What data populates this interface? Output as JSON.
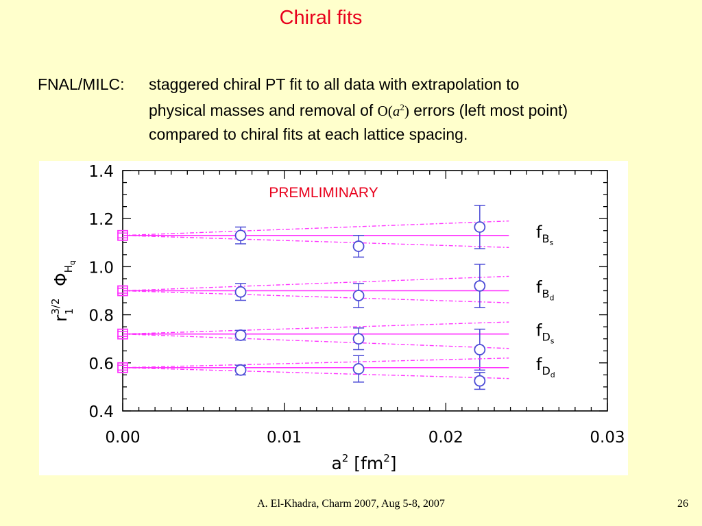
{
  "slide": {
    "title": "Chiral fits",
    "label": "FNAL/MILC:",
    "line1": "staggered chiral PT fit to all data with extrapolation to",
    "line2_pre": "physical masses and removal of ",
    "line2_math_o": "O(",
    "line2_math_a": "a",
    "line2_math_exp": "2",
    "line2_math_close": ")",
    "line2_post": " errors (left most point)",
    "line3": "compared to chiral fits at each lattice spacing.",
    "footer": "A. El-Khadra, Charm 2007, Aug 5-8, 2007",
    "page_number": "26"
  },
  "chart_data": {
    "type": "scatter",
    "annotation": "PREMLIMINARY",
    "xlabel": "a",
    "xlabel_exp": "2",
    "xlabel_unit": "[fm",
    "xlabel_unit_exp": "2",
    "xlabel_unit_close": "]",
    "ylabel": "r",
    "ylabel_exp": "3/2",
    "ylabel_sub": "1",
    "ylabel_phi": "Φ",
    "ylabel_phi_sub": "H",
    "ylabel_phi_subsub": "q",
    "xlim": [
      0,
      0.03
    ],
    "ylim": [
      0.4,
      1.4
    ],
    "x_ticks": [
      0.0,
      0.01,
      0.02,
      0.03
    ],
    "x_tick_labels": [
      "0.00",
      "0.01",
      "0.02",
      "0.03"
    ],
    "y_ticks": [
      0.4,
      0.6,
      0.8,
      1.0,
      1.2,
      1.4
    ],
    "y_tick_labels": [
      "0.4",
      "0.6",
      "0.8",
      "1.0",
      "1.2",
      "1.4"
    ],
    "colors": {
      "data": "#4b4bd6",
      "fit": "#ff33ff",
      "axis": "#000000",
      "annotation": "#e8001c"
    },
    "series": [
      {
        "name": "f",
        "label_sub": "B",
        "label_subsub": "s",
        "extrapolated": {
          "x": 0.0,
          "y": 1.13,
          "err": 0.01
        },
        "points": [
          {
            "x": 0.0073,
            "y": 1.13,
            "err": 0.035
          },
          {
            "x": 0.0146,
            "y": 1.085,
            "err": 0.045
          },
          {
            "x": 0.0221,
            "y": 1.165,
            "err": 0.09
          }
        ],
        "fit": {
          "center": 1.13,
          "upper_end": 1.19,
          "lower_end": 1.08
        }
      },
      {
        "name": "f",
        "label_sub": "B",
        "label_subsub": "d",
        "extrapolated": {
          "x": 0.0,
          "y": 0.9,
          "err": 0.01
        },
        "points": [
          {
            "x": 0.0073,
            "y": 0.895,
            "err": 0.035
          },
          {
            "x": 0.0146,
            "y": 0.88,
            "err": 0.05
          },
          {
            "x": 0.0221,
            "y": 0.92,
            "err": 0.09
          }
        ],
        "fit": {
          "center": 0.9,
          "upper_end": 0.96,
          "lower_end": 0.85
        }
      },
      {
        "name": "f",
        "label_sub": "D",
        "label_subsub": "s",
        "extrapolated": {
          "x": 0.0,
          "y": 0.72,
          "err": 0.01
        },
        "points": [
          {
            "x": 0.0073,
            "y": 0.715,
            "err": 0.02
          },
          {
            "x": 0.0146,
            "y": 0.7,
            "err": 0.045
          },
          {
            "x": 0.0221,
            "y": 0.655,
            "err": 0.085
          }
        ],
        "fit": {
          "center": 0.72,
          "upper_end": 0.77,
          "lower_end": 0.66
        }
      },
      {
        "name": "f",
        "label_sub": "D",
        "label_subsub": "d",
        "extrapolated": {
          "x": 0.0,
          "y": 0.58,
          "err": 0.01
        },
        "points": [
          {
            "x": 0.0073,
            "y": 0.57,
            "err": 0.02
          },
          {
            "x": 0.0146,
            "y": 0.575,
            "err": 0.055
          },
          {
            "x": 0.0221,
            "y": 0.525,
            "err": 0.035
          }
        ],
        "fit": {
          "center": 0.58,
          "upper_end": 0.62,
          "lower_end": 0.535
        }
      }
    ]
  }
}
